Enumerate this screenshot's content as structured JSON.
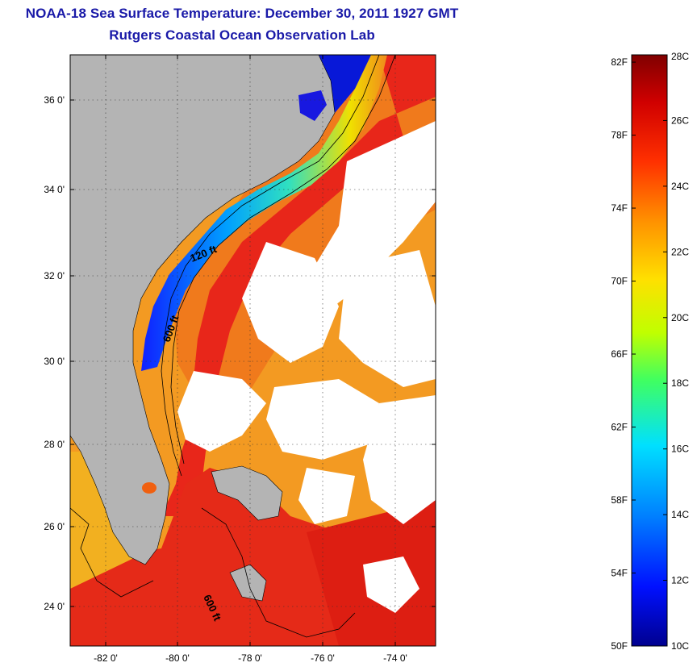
{
  "header": {
    "title_line1": "NOAA-18 Sea Surface Temperature:  December 30, 2011 1927 GMT",
    "title_line2": "Rutgers Coastal Ocean Observation Lab"
  },
  "map": {
    "lat_range": [
      23,
      37.1
    ],
    "lon_range": [
      -83,
      -73
    ],
    "lat_ticks": [
      {
        "value": 36,
        "label": "36 0'"
      },
      {
        "value": 34,
        "label": "34 0'"
      },
      {
        "value": 32,
        "label": "32 0'"
      },
      {
        "value": 30,
        "label": "30 0'"
      },
      {
        "value": 28,
        "label": "28 0'"
      },
      {
        "value": 26,
        "label": "26 0'"
      },
      {
        "value": 24,
        "label": "24 0'"
      }
    ],
    "lon_ticks": [
      {
        "value": -82,
        "label": "-82 0'"
      },
      {
        "value": -80,
        "label": "-80 0'"
      },
      {
        "value": -78,
        "label": "-78 0'"
      },
      {
        "value": -76,
        "label": "-76 0'"
      },
      {
        "value": -74,
        "label": "-74 0'"
      }
    ],
    "contour_labels": {
      "c120": "120 ft",
      "c600a": "600 ft",
      "c600b": "600 ft"
    },
    "colors": {
      "land": "#b4b4b4",
      "cloud": "#ffffff",
      "warm": "#e8341a",
      "orange": "#f08a1c",
      "gulfstream": "#e61e14"
    }
  },
  "colorbar": {
    "range_c": [
      10,
      28
    ],
    "celsius_labels": [
      "28C",
      "26C",
      "24C",
      "22C",
      "20C",
      "18C",
      "16C",
      "14C",
      "12C",
      "10C"
    ],
    "fahrenheit_labels": [
      "82F",
      "78F",
      "74F",
      "70F",
      "66F",
      "62F",
      "58F",
      "54F",
      "50F"
    ],
    "colors": [
      "#00008f",
      "#0010ff",
      "#0080ff",
      "#00e0ff",
      "#40ff60",
      "#c0ff00",
      "#ffe000",
      "#ff9000",
      "#ff3000",
      "#d00000",
      "#800000"
    ]
  }
}
